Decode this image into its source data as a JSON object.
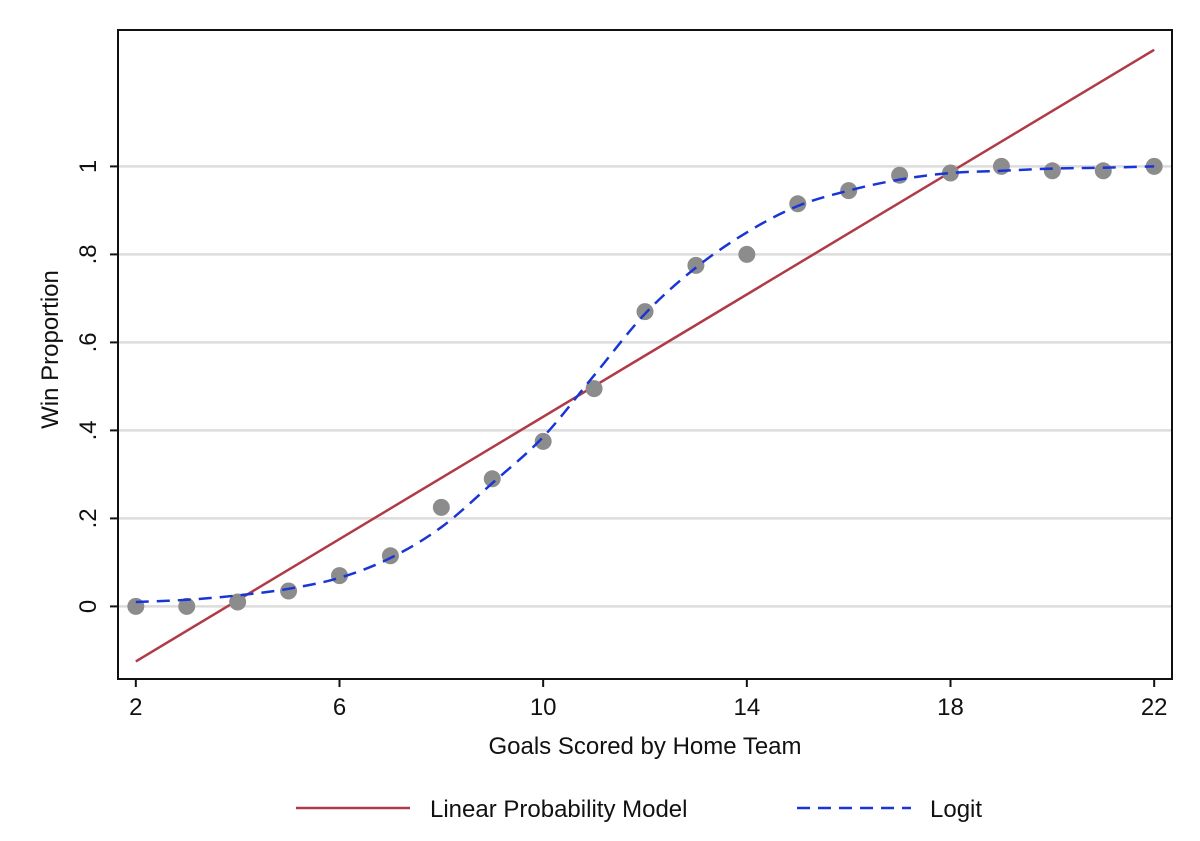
{
  "chart_data": {
    "type": "scatter",
    "title": "",
    "xlabel": "Goals Scored by Home Team",
    "ylabel": "Win Proportion",
    "xlim": [
      1.65,
      22.35
    ],
    "ylim": [
      -0.165,
      1.31
    ],
    "x_ticks": [
      2,
      6,
      10,
      14,
      18,
      22
    ],
    "x_tick_labels": [
      "2",
      "6",
      "10",
      "14",
      "18",
      "22"
    ],
    "y_ticks": [
      0,
      0.2,
      0.4,
      0.6,
      0.8,
      1
    ],
    "y_tick_labels": [
      "0",
      ".2",
      ".4",
      ".6",
      ".8",
      "1"
    ],
    "grid": "horizontal",
    "legend_position": "bottom",
    "series": [
      {
        "type": "scatter",
        "color": "#8c8c8c",
        "x": [
          2,
          3,
          4,
          5,
          6,
          7,
          8,
          9,
          10,
          11,
          12,
          13,
          14,
          15,
          16,
          17,
          18,
          19,
          20,
          21,
          22
        ],
        "y": [
          0.0,
          0.0,
          0.01,
          0.035,
          0.07,
          0.115,
          0.225,
          0.29,
          0.375,
          0.495,
          0.67,
          0.775,
          0.8,
          0.915,
          0.945,
          0.98,
          0.985,
          1.0,
          0.99,
          0.99,
          1.0
        ]
      },
      {
        "type": "line",
        "name": "Linear Probability Model",
        "style": "solid",
        "color": "#b03a48",
        "x": [
          2,
          22
        ],
        "y": [
          -0.125,
          1.265
        ]
      },
      {
        "type": "line",
        "name": "Logit",
        "style": "dashed",
        "color": "#1a35d6",
        "x": [
          2,
          3,
          4,
          5,
          6,
          7,
          8,
          9,
          10,
          11,
          12,
          13,
          14,
          15,
          16,
          17,
          18,
          19,
          20,
          21,
          22
        ],
        "y": [
          0.01,
          0.015,
          0.025,
          0.04,
          0.065,
          0.11,
          0.18,
          0.28,
          0.385,
          0.525,
          0.665,
          0.77,
          0.85,
          0.91,
          0.945,
          0.97,
          0.985,
          0.99,
          0.995,
          0.997,
          1.0
        ]
      }
    ]
  }
}
